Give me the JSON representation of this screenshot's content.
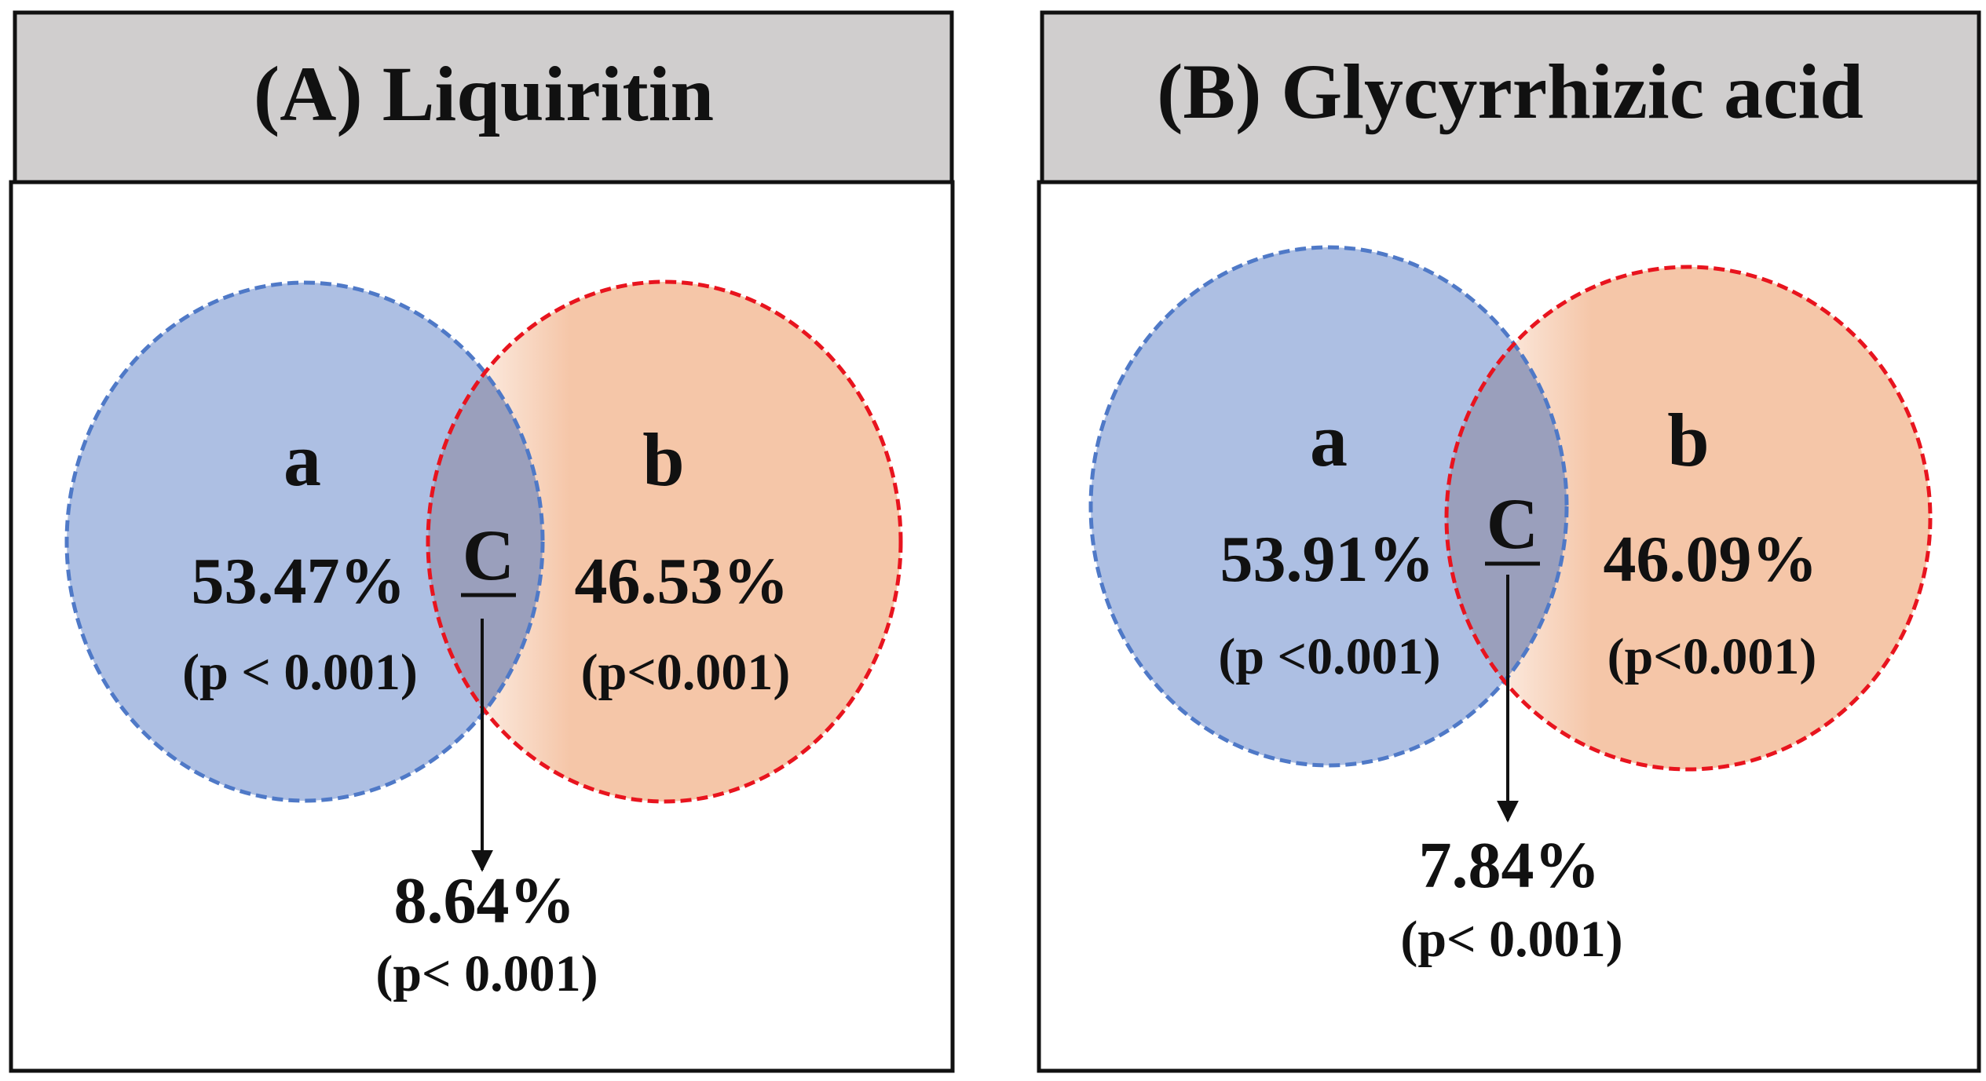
{
  "colors": {
    "set_a_fill": "#adbfe3",
    "set_a_stroke": "#4f79c7",
    "set_b_fill": "#f5c6a8",
    "set_b_stroke": "#e8141e",
    "intersection_fill": "#9a9fbc",
    "header_fill": "#d0cece",
    "border": "#111111"
  },
  "panels": [
    {
      "title": "(A) Liquiritin",
      "set_a": {
        "label": "a",
        "percent": "53.47%",
        "p_value": "(p < 0.001)"
      },
      "set_b": {
        "label": "b",
        "percent": "46.53%",
        "p_value": "(p<0.001)"
      },
      "intersection": {
        "label": "C",
        "percent": "8.64%",
        "p_value": "(p< 0.001)"
      }
    },
    {
      "title": "(B) Glycyrrhizic acid",
      "set_a": {
        "label": "a",
        "percent": "53.91%",
        "p_value": "(p <0.001)"
      },
      "set_b": {
        "label": "b",
        "percent": "46.09%",
        "p_value": "(p<0.001)"
      },
      "intersection": {
        "label": "C",
        "percent": "7.84%",
        "p_value": "(p< 0.001)"
      }
    }
  ]
}
